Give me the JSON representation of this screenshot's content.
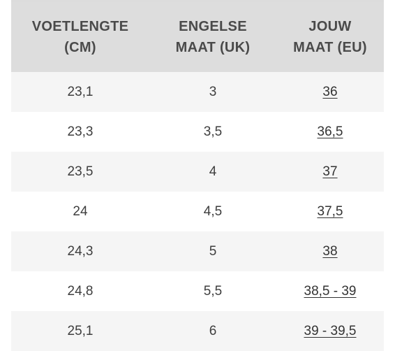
{
  "table": {
    "headers": [
      [
        "VOETLENGTE",
        "(CM)"
      ],
      [
        "ENGELSE",
        "MAAT (UK)"
      ],
      [
        "JOUW",
        "MAAT (EU)"
      ]
    ],
    "rows": [
      [
        "23,1",
        "3",
        "36"
      ],
      [
        "23,3",
        "3,5",
        "36,5"
      ],
      [
        "23,5",
        "4",
        "37"
      ],
      [
        "24",
        "4,5",
        "37,5"
      ],
      [
        "24,3",
        "5",
        "38"
      ],
      [
        "24,8",
        "5,5",
        "38,5 - 39"
      ],
      [
        "25,1",
        "6",
        "39 - 39,5"
      ]
    ]
  },
  "colors": {
    "header_bg": "#dddddd",
    "row_alt_bg": "#f5f5f5",
    "text": "#444444"
  }
}
